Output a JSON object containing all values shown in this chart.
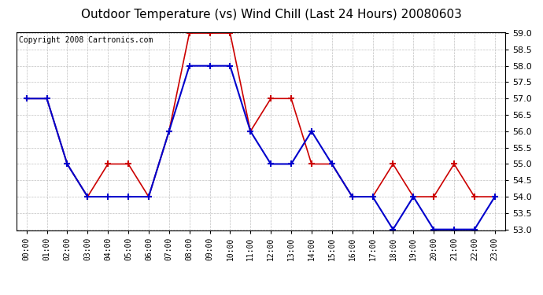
{
  "title": "Outdoor Temperature (vs) Wind Chill (Last 24 Hours) 20080603",
  "copyright": "Copyright 2008 Cartronics.com",
  "hours": [
    "00:00",
    "01:00",
    "02:00",
    "03:00",
    "04:00",
    "05:00",
    "06:00",
    "07:00",
    "08:00",
    "09:00",
    "10:00",
    "11:00",
    "12:00",
    "13:00",
    "14:00",
    "15:00",
    "16:00",
    "17:00",
    "18:00",
    "19:00",
    "20:00",
    "21:00",
    "22:00",
    "23:00"
  ],
  "temp_red": [
    57.0,
    57.0,
    55.0,
    54.0,
    55.0,
    55.0,
    54.0,
    56.0,
    59.0,
    59.0,
    59.0,
    56.0,
    57.0,
    57.0,
    55.0,
    55.0,
    54.0,
    54.0,
    55.0,
    54.0,
    54.0,
    55.0,
    54.0,
    54.0
  ],
  "wind_chill_blue": [
    57.0,
    57.0,
    55.0,
    54.0,
    54.0,
    54.0,
    54.0,
    56.0,
    58.0,
    58.0,
    58.0,
    56.0,
    55.0,
    55.0,
    56.0,
    55.0,
    54.0,
    54.0,
    53.0,
    54.0,
    53.0,
    53.0,
    53.0,
    54.0
  ],
  "red_color": "#cc0000",
  "blue_color": "#0000cc",
  "bg_color": "#ffffff",
  "plot_bg": "#ffffff",
  "grid_color": "#b0b0b0",
  "ylim_min": 53.0,
  "ylim_max": 59.0,
  "ytick_step": 0.5,
  "title_fontsize": 11,
  "copyright_fontsize": 7
}
